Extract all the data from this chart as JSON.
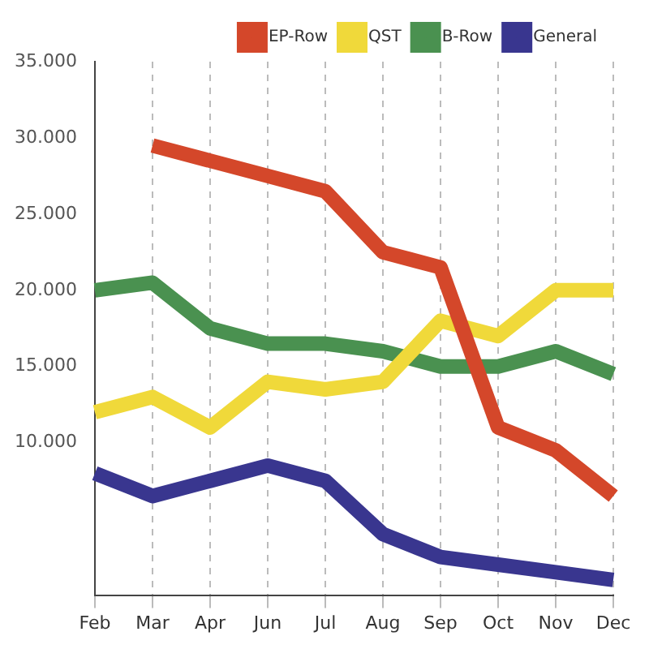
{
  "chart_data": {
    "type": "line",
    "categories": [
      "Feb",
      "Mar",
      "Apr",
      "Jun",
      "Jul",
      "Aug",
      "Sep",
      "Oct",
      "Nov",
      "Dec"
    ],
    "series": [
      {
        "name": "EP-Row",
        "color": "#d4472a",
        "values": [
          null,
          29500,
          28500,
          27500,
          26500,
          22500,
          21500,
          11000,
          9500,
          6500
        ]
      },
      {
        "name": "QST",
        "color": "#f0d93a",
        "values": [
          12000,
          13000,
          11000,
          14000,
          13500,
          14000,
          18000,
          17000,
          20000,
          20000
        ]
      },
      {
        "name": "B-Row",
        "color": "#4a9150",
        "values": [
          20000,
          20500,
          17500,
          16500,
          16500,
          16000,
          15000,
          15000,
          16000,
          14500
        ]
      },
      {
        "name": "General",
        "color": "#39368f",
        "values": [
          8000,
          6500,
          7500,
          8500,
          7500,
          4000,
          2500,
          2000,
          1500,
          1000
        ]
      }
    ],
    "ylim": [
      0,
      35000
    ],
    "yticks": [
      {
        "value": 10000,
        "label": "10.000"
      },
      {
        "value": 15000,
        "label": "15.000"
      },
      {
        "value": 20000,
        "label": "20.000"
      },
      {
        "value": 25000,
        "label": "25.000"
      },
      {
        "value": 30000,
        "label": "30.000"
      },
      {
        "value": 35000,
        "label": "35.000"
      }
    ],
    "grid": "x",
    "legend": "top right",
    "marker": "none",
    "line_style": "solid"
  }
}
